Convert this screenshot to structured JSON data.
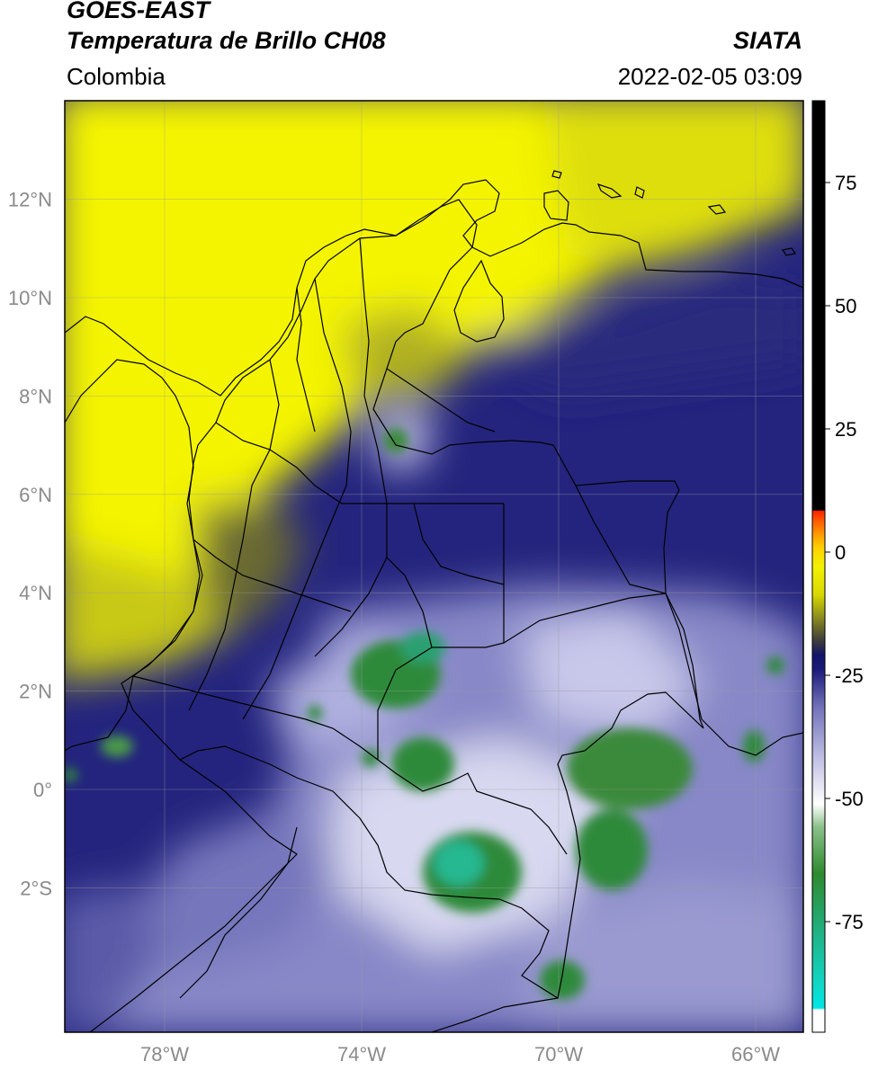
{
  "header": {
    "satellite": "GOES-EAST",
    "product": "Temperatura de Brillo CH08",
    "region": "Colombia",
    "source": "SIATA",
    "datetime": "2022-02-05 03:09"
  },
  "map": {
    "lat_ticks": [
      {
        "value": 12,
        "label": "12°N"
      },
      {
        "value": 10,
        "label": "10°N"
      },
      {
        "value": 8,
        "label": "8°N"
      },
      {
        "value": 6,
        "label": "6°N"
      },
      {
        "value": 4,
        "label": "4°N"
      },
      {
        "value": 2,
        "label": "2°N"
      },
      {
        "value": 0,
        "label": "0°"
      },
      {
        "value": -2,
        "label": "2°S"
      }
    ],
    "lon_ticks": [
      {
        "value": -78,
        "label": "78°W"
      },
      {
        "value": -74,
        "label": "74°W"
      },
      {
        "value": -70,
        "label": "70°W"
      },
      {
        "value": -66,
        "label": "66°W"
      }
    ]
  },
  "colorbar": {
    "ticks": [
      {
        "value": 75,
        "label": "75"
      },
      {
        "value": 50,
        "label": "50"
      },
      {
        "value": 25,
        "label": "25"
      },
      {
        "value": 0,
        "label": "0"
      },
      {
        "value": -25,
        "label": "-25"
      },
      {
        "value": -50,
        "label": "-50"
      },
      {
        "value": -75,
        "label": "-75"
      }
    ],
    "colors": {
      "black": "#000000",
      "red": "#ff2200",
      "orange": "#ff9900",
      "yellow": "#f2f200",
      "olive": "#5a5a10",
      "navy": "#1a1a7a",
      "lavender": "#9a9ad0",
      "white": "#ffffff",
      "green": "#2e8a2e",
      "teal": "#20c8a0",
      "cyan": "#00e5e5"
    }
  }
}
